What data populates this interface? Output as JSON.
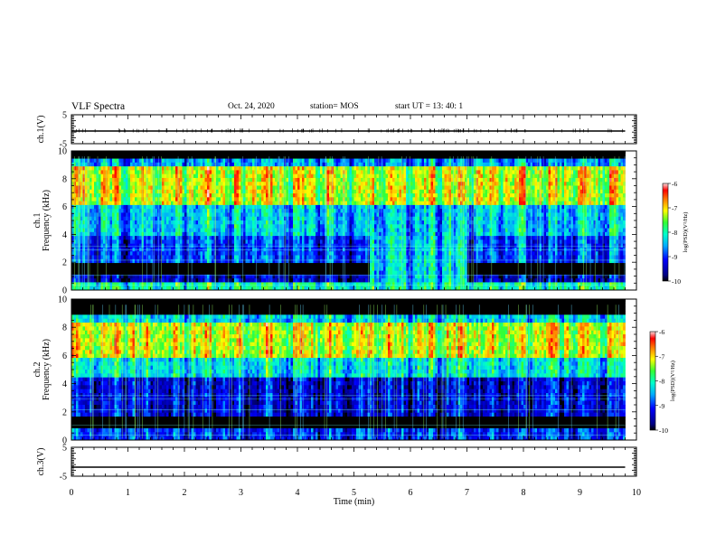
{
  "header": {
    "title": "VLF Spectra",
    "date": "Oct. 24, 2020",
    "station": "station= MOS",
    "start_ut": "start  UT  =   13: 40: 1"
  },
  "chart_data": [
    {
      "type": "line",
      "panel": "ch1-waveform",
      "ylabel": "ch.1(V)",
      "ylim": [
        -5,
        5
      ],
      "yticks": [
        "5",
        "-5"
      ],
      "xlim": [
        0,
        10
      ],
      "series": [
        {
          "x": [
            0,
            9.8
          ],
          "values": [
            0,
            0
          ],
          "color": "#000000"
        }
      ]
    },
    {
      "type": "heatmap",
      "panel": "ch1-spectrogram",
      "ylabel": "ch.1\nFrequency (kHz)",
      "ylim": [
        0,
        10
      ],
      "yticks": [
        "0",
        "2",
        "4",
        "6",
        "8",
        "10"
      ],
      "xlim": [
        0,
        10
      ],
      "data_xmax": 9.8,
      "colorbar": {
        "label": "log(PSD)(V²/Hz)",
        "range": [
          -10,
          -6
        ],
        "ticks": [
          "-6",
          "-7",
          "-8",
          "-9",
          "-10"
        ]
      },
      "bands": [
        {
          "f": [
            0,
            0.5
          ],
          "level": -8.0
        },
        {
          "f": [
            0.5,
            1.2
          ],
          "level": -9.5
        },
        {
          "f": [
            1.2,
            2.0
          ],
          "level": -10.0
        },
        {
          "f": [
            2.0,
            4.0
          ],
          "level": -9.0
        },
        {
          "f": [
            4.0,
            6.0
          ],
          "level": -8.4
        },
        {
          "f": [
            6.0,
            9.0
          ],
          "level": -7.2
        },
        {
          "f": [
            9.0,
            9.5
          ],
          "level": -8.6
        },
        {
          "f": [
            9.5,
            10.0
          ],
          "level": -10.0
        }
      ],
      "enhanced_region": {
        "t": [
          5.3,
          7.0
        ],
        "f": [
          0,
          4
        ],
        "level": -8.3
      }
    },
    {
      "type": "heatmap",
      "panel": "ch2-spectrogram",
      "ylabel": "ch.2\nFrequency (kHz)",
      "ylim": [
        0,
        10
      ],
      "yticks": [
        "0",
        "2",
        "4",
        "6",
        "8",
        "10"
      ],
      "xlim": [
        0,
        10
      ],
      "data_xmax": 9.8,
      "colorbar": {
        "label": "log(PSD)(V²/Hz)",
        "range": [
          -10,
          -6
        ],
        "ticks": [
          "-6",
          "-7",
          "-8",
          "-9",
          "-10"
        ]
      },
      "bands": [
        {
          "f": [
            0,
            0.8
          ],
          "level": -9.0
        },
        {
          "f": [
            0.8,
            1.8
          ],
          "level": -10.0
        },
        {
          "f": [
            1.8,
            4.5
          ],
          "level": -9.3
        },
        {
          "f": [
            4.5,
            5.8
          ],
          "level": -8.2
        },
        {
          "f": [
            5.8,
            8.2
          ],
          "level": -7.2
        },
        {
          "f": [
            8.2,
            9.0
          ],
          "level": -8.3
        },
        {
          "f": [
            9.0,
            10.0
          ],
          "level": -10.0
        }
      ]
    },
    {
      "type": "line",
      "panel": "ch3-waveform",
      "ylabel": "ch.3(V)",
      "ylim": [
        -5,
        5
      ],
      "yticks": [
        "5",
        "-5"
      ],
      "xlim": [
        0,
        10
      ],
      "series": [
        {
          "x": [
            0,
            9.8
          ],
          "values": [
            0,
            0
          ],
          "color": "#000000"
        }
      ]
    }
  ],
  "xaxis": {
    "label": "Time  (min)",
    "ticks": [
      "0",
      "1",
      "2",
      "3",
      "4",
      "5",
      "6",
      "7",
      "8",
      "9",
      "10"
    ]
  }
}
